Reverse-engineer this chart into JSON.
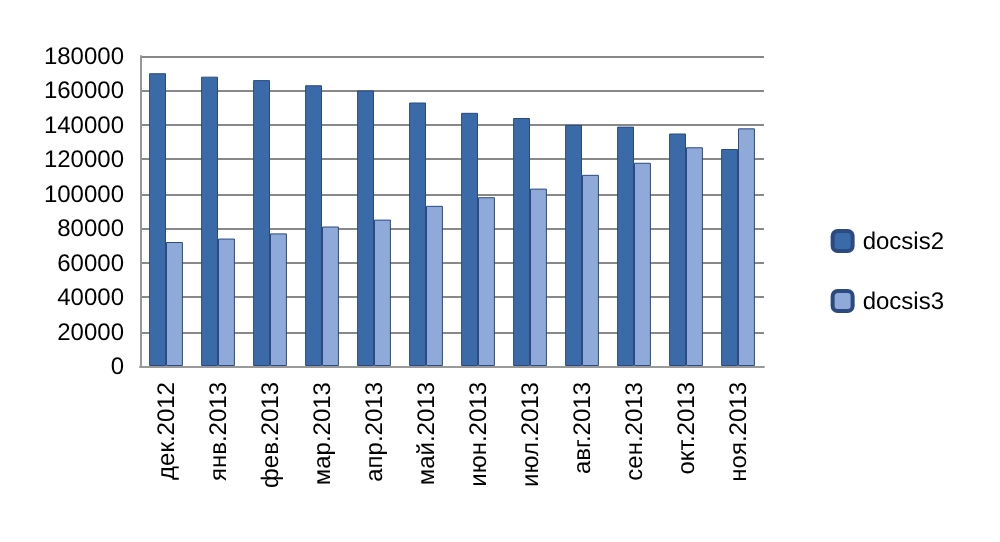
{
  "chart_data": {
    "type": "bar",
    "categories": [
      "дек.2012",
      "янв.2013",
      "фев.2013",
      "мар.2013",
      "апр.2013",
      "май.2013",
      "июн.2013",
      "июл.2013",
      "авг.2013",
      "сен.2013",
      "окт.2013",
      "ноя.2013"
    ],
    "series": [
      {
        "name": "docsis2",
        "color": "#3a6aa8",
        "values": [
          170000,
          168000,
          166000,
          163000,
          160000,
          153000,
          147000,
          144000,
          140000,
          139000,
          135000,
          126000
        ]
      },
      {
        "name": "docsis3",
        "color": "#8fa9d8",
        "values": [
          72000,
          74000,
          77000,
          81000,
          85000,
          93000,
          98000,
          103000,
          111000,
          118000,
          127000,
          138000
        ]
      }
    ],
    "ylim": [
      0,
      180000
    ],
    "yticks": [
      0,
      20000,
      40000,
      60000,
      80000,
      100000,
      120000,
      140000,
      160000,
      180000
    ],
    "grid": "y",
    "legend": "right"
  }
}
